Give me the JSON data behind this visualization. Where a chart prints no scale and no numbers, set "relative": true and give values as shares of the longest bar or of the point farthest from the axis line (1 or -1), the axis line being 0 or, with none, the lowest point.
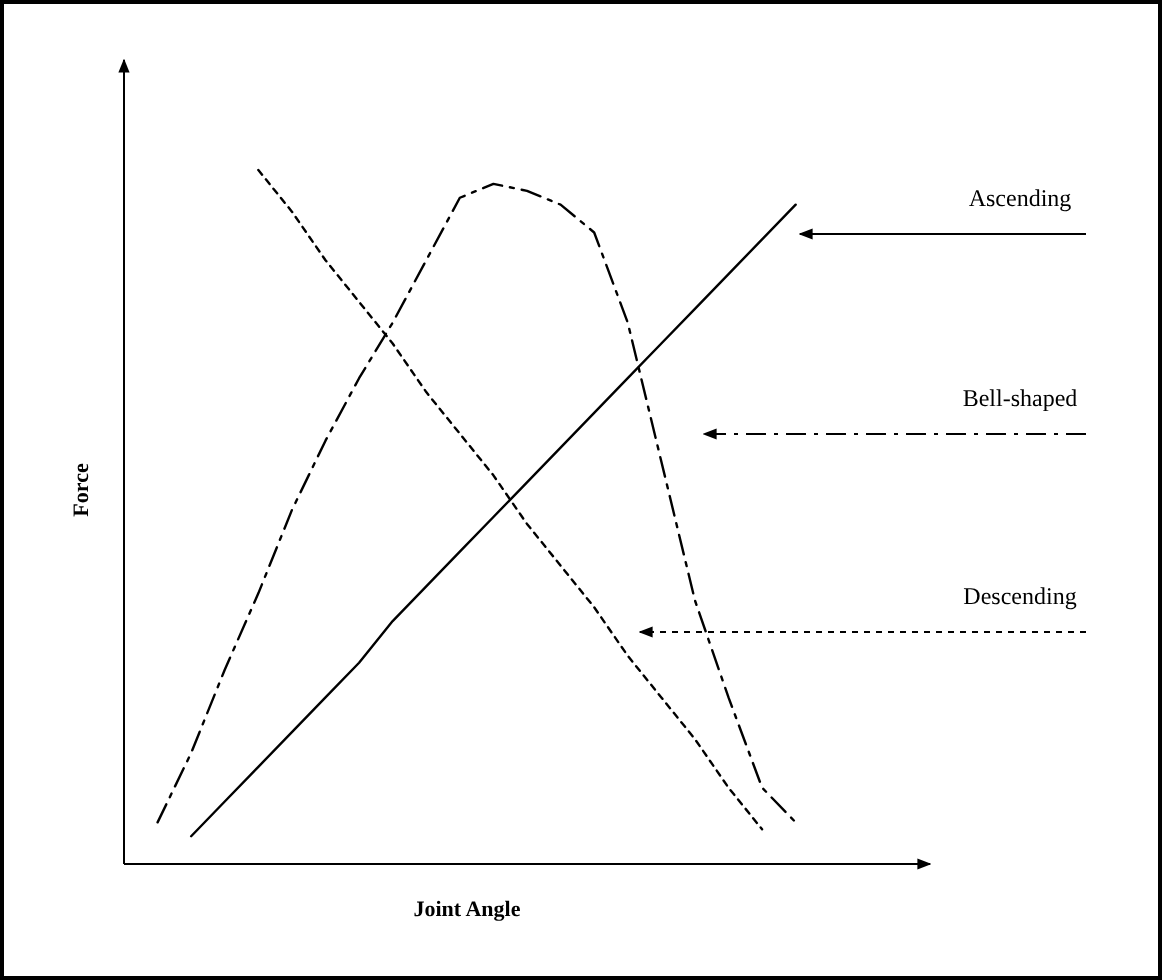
{
  "chart_data": {
    "type": "line",
    "relative": true,
    "xlabel": "Joint Angle",
    "ylabel": "Force",
    "categories": [
      null,
      null,
      null,
      null,
      null,
      null,
      null,
      null,
      null,
      null,
      null,
      null,
      null,
      null,
      null,
      null,
      null,
      null,
      null,
      null,
      null,
      null,
      null,
      null,
      null
    ],
    "series": [
      {
        "name": "Ascending",
        "color": "#000000",
        "line_style": "solid",
        "values": [
          null,
          null,
          0.04,
          0.09,
          0.14,
          0.19,
          0.24,
          0.29,
          0.35,
          0.4,
          0.45,
          0.5,
          0.55,
          0.6,
          0.65,
          0.7,
          0.75,
          0.8,
          0.85,
          0.9,
          0.95,
          null,
          null,
          null,
          null
        ]
      },
      {
        "name": "Bell-shaped",
        "color": "#000000",
        "line_style": "dashed",
        "values": [
          null,
          0.06,
          0.16,
          0.28,
          0.39,
          0.51,
          0.61,
          0.7,
          0.78,
          0.87,
          0.96,
          0.98,
          0.97,
          0.95,
          0.91,
          0.78,
          0.58,
          0.38,
          0.24,
          0.11,
          0.06,
          null,
          null,
          null,
          null
        ]
      },
      {
        "name": "Descending",
        "color": "#000000",
        "line_style": "dotted",
        "values": [
          null,
          null,
          null,
          null,
          1.0,
          0.94,
          0.87,
          0.81,
          0.75,
          0.68,
          0.62,
          0.56,
          0.49,
          0.43,
          0.37,
          0.3,
          0.24,
          0.18,
          0.11,
          0.05,
          null,
          null,
          null,
          null,
          null
        ]
      }
    ]
  }
}
